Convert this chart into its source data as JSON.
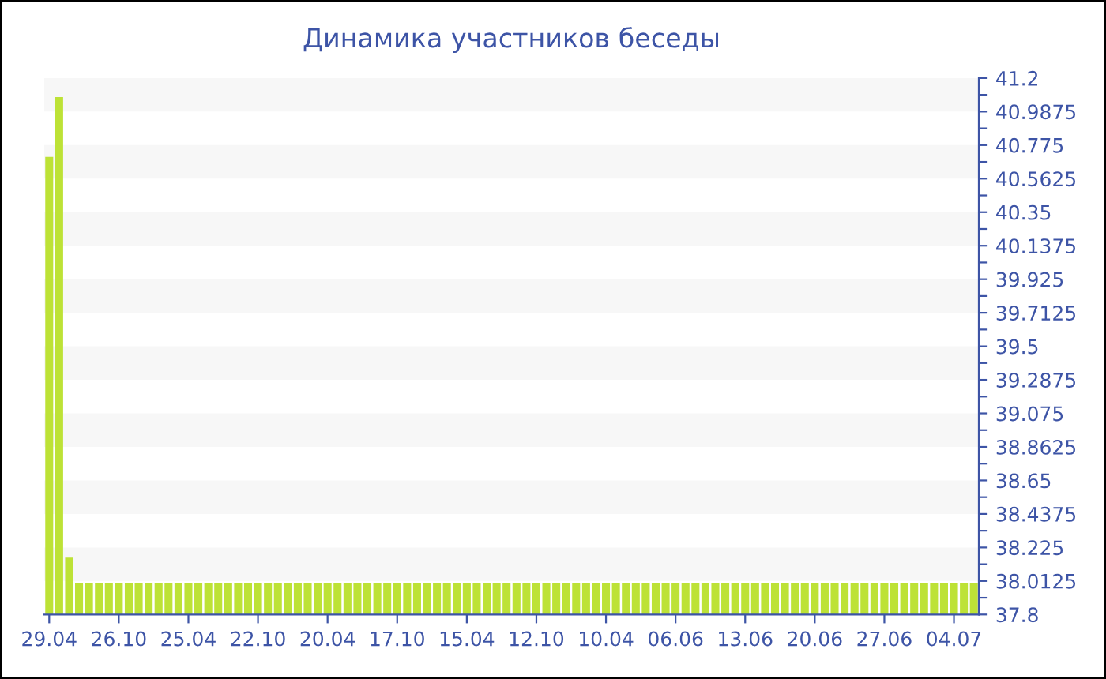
{
  "chart_data": {
    "type": "bar",
    "title": "Динамика участников беседы",
    "categories": [
      "29.04",
      null,
      null,
      null,
      null,
      null,
      null,
      "26.10",
      null,
      null,
      null,
      null,
      null,
      null,
      "25.04",
      null,
      null,
      null,
      null,
      null,
      null,
      "22.10",
      null,
      null,
      null,
      null,
      null,
      null,
      "20.04",
      null,
      null,
      null,
      null,
      null,
      null,
      "17.10",
      null,
      null,
      null,
      null,
      null,
      null,
      "15.04",
      null,
      null,
      null,
      null,
      null,
      null,
      "12.10",
      null,
      null,
      null,
      null,
      null,
      null,
      "10.04",
      null,
      null,
      null,
      null,
      null,
      null,
      "06.06",
      null,
      null,
      null,
      null,
      null,
      null,
      "13.06",
      null,
      null,
      null,
      null,
      null,
      null,
      "20.06",
      null,
      null,
      null,
      null,
      null,
      null,
      "27.06",
      null,
      null,
      null,
      null,
      null,
      null,
      "04.07",
      null,
      null
    ],
    "values": [
      40.7,
      41.08,
      38.16,
      38,
      38,
      38,
      38,
      38,
      38,
      38,
      38,
      38,
      38,
      38,
      38,
      38,
      38,
      38,
      38,
      38,
      38,
      38,
      38,
      38,
      38,
      38,
      38,
      38,
      38,
      38,
      38,
      38,
      38,
      38,
      38,
      38,
      38,
      38,
      38,
      38,
      38,
      38,
      38,
      38,
      38,
      38,
      38,
      38,
      38,
      38,
      38,
      38,
      38,
      38,
      38,
      38,
      38,
      38,
      38,
      38,
      38,
      38,
      38,
      38,
      38,
      38,
      38,
      38,
      38,
      38,
      38,
      38,
      38,
      38,
      38,
      38,
      38,
      38,
      38,
      38,
      38,
      38,
      38,
      38,
      38,
      38,
      38,
      38,
      38,
      38,
      38,
      38,
      38,
      38
    ],
    "color": "#bde236",
    "ylim": [
      37.8,
      41.2
    ],
    "yticks": [
      37.8,
      {
        "value": 37.90625,
        "label": null
      },
      38.0125,
      {
        "value": 38.11875,
        "label": null
      },
      38.225,
      {
        "value": 38.33125,
        "label": null
      },
      38.4375,
      {
        "value": 38.54375,
        "label": null
      },
      38.65,
      {
        "value": 38.75625,
        "label": null
      },
      38.8625,
      {
        "value": 38.96875,
        "label": null
      },
      39.075,
      {
        "value": 39.18125,
        "label": null
      },
      39.2875,
      {
        "value": 39.39375,
        "label": null
      },
      39.5,
      {
        "value": 39.60625,
        "label": null
      },
      39.7125,
      {
        "value": 39.81875,
        "label": null
      },
      39.925,
      {
        "value": 40.03125,
        "label": null
      },
      40.1375,
      {
        "value": 40.24375,
        "label": null
      },
      40.35,
      {
        "value": 40.45625,
        "label": null
      },
      40.5625,
      {
        "value": 40.66875,
        "label": null
      },
      40.775,
      {
        "value": 40.88125,
        "label": null
      },
      40.9875,
      {
        "value": 41.09375,
        "label": null
      },
      41.2
    ],
    "bands": [
      {
        "axis": "y",
        "from": 40.9875,
        "to": 41.2,
        "color": "#f7f7f7"
      },
      {
        "axis": "y",
        "from": 40.5625,
        "to": 40.775,
        "color": "#f7f7f7"
      },
      {
        "axis": "y",
        "from": 40.1375,
        "to": 40.35,
        "color": "#f7f7f7"
      },
      {
        "axis": "y",
        "from": 39.7125,
        "to": 39.925,
        "color": "#f7f7f7"
      },
      {
        "axis": "y",
        "from": 39.2875,
        "to": 39.5,
        "color": "#f7f7f7"
      },
      {
        "axis": "y",
        "from": 38.8625,
        "to": 39.075,
        "color": "#f7f7f7"
      },
      {
        "axis": "y",
        "from": 38.4375,
        "to": 38.65,
        "color": "#f7f7f7"
      },
      {
        "axis": "y",
        "from": 38.0125,
        "to": 38.225,
        "color": "#f7f7f7"
      }
    ],
    "grid": false,
    "legend": false
  }
}
